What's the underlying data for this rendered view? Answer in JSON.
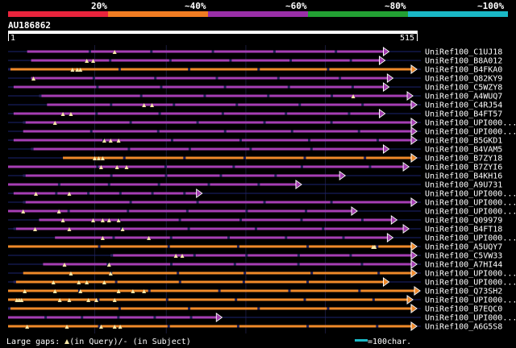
{
  "header": {
    "identity_labels": [
      "20%",
      "~40%",
      "~60%",
      "~80%",
      "~100%"
    ],
    "identity_colors": [
      "#e8243c",
      "#f07c22",
      "#9a2fa8",
      "#23a033",
      "#1ab8c6"
    ]
  },
  "query": {
    "id": "AU186862",
    "start_label": "1",
    "end_label": "515",
    "length": 515
  },
  "hit_colors": {
    "purple": "#a63eb4",
    "orange": "#f08a2a",
    "mismatch": "#21215a",
    "gap_marker": "#f5e6a6",
    "connector": "#1d2470"
  },
  "chart_data": {
    "type": "alignment-track",
    "axis_range": [
      1,
      515
    ],
    "hits": [
      {
        "name": "UniRef100_C1UJ18",
        "start": 25,
        "end": 480,
        "color": "purple",
        "gaps": [
          135
        ]
      },
      {
        "name": "UniRef100_B8A012",
        "start": 30,
        "end": 475,
        "color": "purple",
        "gaps": [
          100,
          108
        ]
      },
      {
        "name": "UniRef100_B4FKA0",
        "start": 1,
        "end": 515,
        "color": "orange",
        "gaps": [
          82,
          88,
          92
        ]
      },
      {
        "name": "UniRef100_Q82KY9",
        "start": 30,
        "end": 485,
        "color": "purple",
        "gaps": [
          33
        ]
      },
      {
        "name": "UniRef100_C5WZY8",
        "start": 8,
        "end": 480,
        "color": "purple",
        "gaps": []
      },
      {
        "name": "UniRef100_A4WUQ7",
        "start": 40,
        "end": 510,
        "color": "purple",
        "gaps": [
          435
        ]
      },
      {
        "name": "UniRef100_C4RJ54",
        "start": 50,
        "end": 515,
        "color": "purple",
        "gaps": [
          172,
          182
        ]
      },
      {
        "name": "UniRef100_B4FT57",
        "start": 8,
        "end": 475,
        "color": "purple",
        "gaps": [
          70,
          80
        ]
      },
      {
        "name": "UniRef100_UPI000_a",
        "start": 20,
        "end": 515,
        "color": "purple",
        "gaps": [
          60
        ]
      },
      {
        "name": "UniRef100_UPI000_b",
        "start": 20,
        "end": 515,
        "color": "purple",
        "gaps": []
      },
      {
        "name": "UniRef100_B5GKD1",
        "start": 8,
        "end": 515,
        "color": "purple",
        "gaps": [
          122,
          130,
          140
        ]
      },
      {
        "name": "UniRef100_B4VAM5",
        "start": 30,
        "end": 480,
        "color": "purple",
        "gaps": []
      },
      {
        "name": "UniRef100_B7ZY18",
        "start": 70,
        "end": 515,
        "color": "orange",
        "gaps": [
          110,
          115,
          120
        ]
      },
      {
        "name": "UniRef100_B7ZYI6",
        "start": 1,
        "end": 505,
        "color": "purple",
        "gaps": [
          118,
          138,
          150
        ]
      },
      {
        "name": "UniRef100_B4KH16",
        "start": 20,
        "end": 425,
        "color": "purple",
        "gaps": []
      },
      {
        "name": "UniRef100_A9U731",
        "start": 1,
        "end": 370,
        "color": "purple",
        "gaps": []
      },
      {
        "name": "UniRef100_UPI000_c",
        "start": 8,
        "end": 245,
        "color": "purple",
        "gaps": [
          36,
          78
        ]
      },
      {
        "name": "UniRef100_UPI000_d",
        "start": 20,
        "end": 515,
        "color": "purple",
        "gaps": []
      },
      {
        "name": "UniRef100_UPI000_e",
        "start": 1,
        "end": 440,
        "color": "purple",
        "gaps": [
          20,
          65
        ]
      },
      {
        "name": "UniRef100_Q09979",
        "start": 40,
        "end": 490,
        "color": "purple",
        "gaps": [
          70,
          108,
          120,
          128,
          140
        ]
      },
      {
        "name": "UniRef100_B4FT18",
        "start": 8,
        "end": 505,
        "color": "purple",
        "gaps": [
          35,
          78,
          145
        ]
      },
      {
        "name": "UniRef100_UPI000_f",
        "start": 60,
        "end": 485,
        "color": "purple",
        "gaps": [
          120,
          178
        ]
      },
      {
        "name": "UniRef100_A5UQY7",
        "start": 1,
        "end": 515,
        "color": "orange",
        "gaps": [
          460,
          462
        ]
      },
      {
        "name": "UniRef100_C5VW33",
        "start": 130,
        "end": 515,
        "color": "purple",
        "gaps": [
          212,
          220
        ]
      },
      {
        "name": "UniRef100_A7HI44",
        "start": 45,
        "end": 515,
        "color": "purple",
        "gaps": [
          72,
          128
        ]
      },
      {
        "name": "UniRef100_UPI000_g",
        "start": 20,
        "end": 515,
        "color": "orange",
        "gaps": [
          80,
          130
        ]
      },
      {
        "name": "UniRef100_UPI000_h",
        "start": 8,
        "end": 480,
        "color": "orange",
        "gaps": [
          58,
          90,
          100,
          122
        ]
      },
      {
        "name": "UniRef100_Q73SH2",
        "start": 1,
        "end": 520,
        "color": "orange",
        "gaps": [
          22,
          60,
          92,
          140,
          158,
          172
        ]
      },
      {
        "name": "UniRef100_UPI000_i",
        "start": 1,
        "end": 510,
        "color": "orange",
        "gaps": [
          12,
          15,
          18,
          66,
          78,
          102,
          112,
          135
        ]
      },
      {
        "name": "UniRef100_B7EQC0",
        "start": 1,
        "end": 515,
        "color": "orange",
        "gaps": []
      },
      {
        "name": "UniRef100_UPI000_j",
        "start": 1,
        "end": 270,
        "color": "purple",
        "gaps": []
      },
      {
        "name": "UniRef100_A6G5S8",
        "start": 1,
        "end": 515,
        "color": "orange",
        "gaps": [
          25,
          75,
          118,
          135,
          142
        ]
      }
    ]
  },
  "hit_labels": [
    "UniRef100_C1UJ18",
    "UniRef100_B8A012",
    "UniRef100_B4FKA0",
    "UniRef100_Q82KY9",
    "UniRef100_C5WZY8",
    "UniRef100_A4WUQ7",
    "UniRef100_C4RJ54",
    "UniRef100_B4FT57",
    "UniRef100_UPI000...",
    "UniRef100_UPI000...",
    "UniRef100_B5GKD1",
    "UniRef100_B4VAM5",
    "UniRef100_B7ZY18",
    "UniRef100_B7ZYI6",
    "UniRef100_B4KH16",
    "UniRef100_A9U731",
    "UniRef100_UPI000...",
    "UniRef100_UPI000...",
    "UniRef100_UPI000...",
    "UniRef100_Q09979",
    "UniRef100_B4FT18",
    "UniRef100_UPI000...",
    "UniRef100_A5UQY7",
    "UniRef100_C5VW33",
    "UniRef100_A7HI44",
    "UniRef100_UPI000...",
    "UniRef100_UPI000...",
    "UniRef100_Q73SH2",
    "UniRef100_UPI000...",
    "UniRef100_B7EQC0",
    "UniRef100_UPI000...",
    "UniRef100_A6G5S8"
  ],
  "legend": {
    "prefix": "Large gaps:",
    "query_gap": "(in Query)/",
    "subject_gap": "- (in Subject)",
    "scale_text": "=100char."
  }
}
